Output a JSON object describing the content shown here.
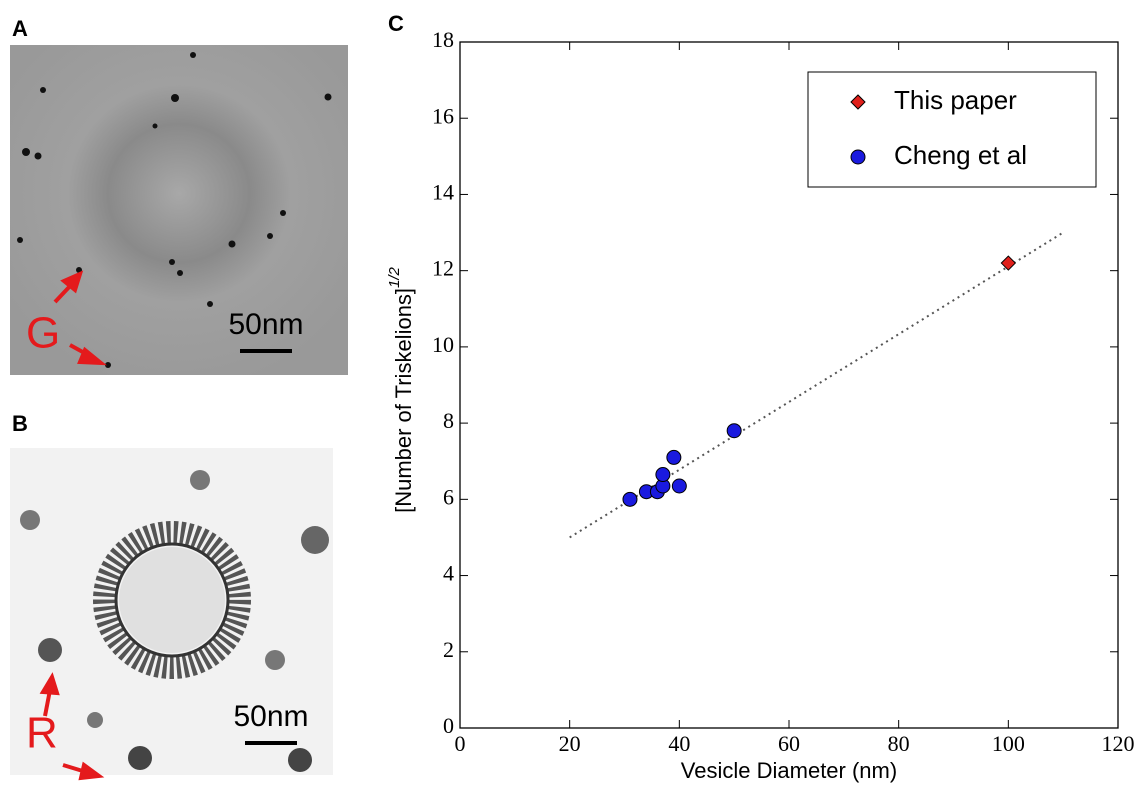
{
  "panels": [
    {
      "label": "A",
      "marker": "G",
      "scale_bar": "50nm"
    },
    {
      "label": "B",
      "marker": "R",
      "scale_bar": "50nm"
    }
  ],
  "chart_data": {
    "type": "scatter",
    "panel_label": "C",
    "xlabel": "Vesicle Diameter (nm)",
    "ylabel": "[Number of Triskelions]",
    "ylabel_superscript": "1/2",
    "xlim": [
      0,
      120
    ],
    "xticks": [
      0,
      20,
      40,
      60,
      80,
      100,
      120
    ],
    "ylim": [
      0,
      18
    ],
    "yticks": [
      0,
      2,
      4,
      6,
      8,
      10,
      12,
      14,
      16,
      18
    ],
    "legend": "upper right",
    "series": [
      {
        "name": "This paper",
        "color": "#e0201b",
        "marker": "diamond",
        "x": [
          100
        ],
        "values": [
          12.2
        ]
      },
      {
        "name": "Cheng et al",
        "color": "#1a1adf",
        "marker": "circle",
        "x": [
          31,
          34,
          36,
          37,
          37,
          39,
          40,
          50
        ],
        "values": [
          6.0,
          6.2,
          6.2,
          6.35,
          6.65,
          7.1,
          6.35,
          7.8
        ]
      }
    ],
    "fit_line": {
      "x": [
        20,
        110
      ],
      "y": [
        5.0,
        13.0
      ]
    }
  }
}
